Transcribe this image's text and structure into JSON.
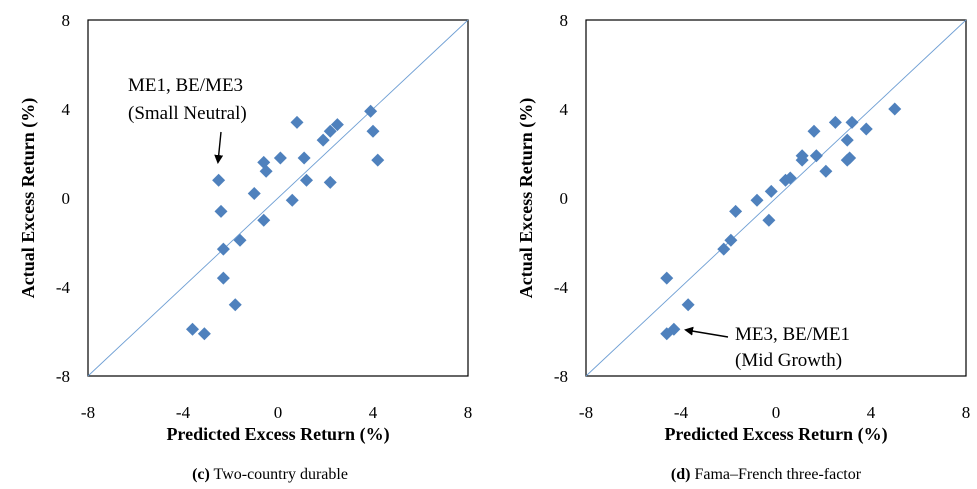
{
  "chart_data": [
    {
      "type": "scatter",
      "xlabel": "Predicted Excess Return (%)",
      "ylabel": "Actual Excess Return (%)",
      "xlim": [
        -8,
        8
      ],
      "ylim": [
        -8,
        8
      ],
      "xticks": [
        "-8",
        "-4",
        "0",
        "4",
        "8"
      ],
      "xtick_values": [
        -8,
        -4,
        0,
        4,
        8
      ],
      "yticks": [
        "8",
        "4",
        "0",
        "-4",
        "-8"
      ],
      "ytick_values": [
        8,
        4,
        0,
        -4,
        -8
      ],
      "grid": false,
      "reference_line": "y = x",
      "marker": "diamond",
      "marker_color": "#4f81bd",
      "line_color": "#6f9fd4",
      "points": [
        {
          "x": -2.5,
          "y": 0.8
        },
        {
          "x": -2.4,
          "y": -0.6
        },
        {
          "x": -2.3,
          "y": -2.3
        },
        {
          "x": -2.3,
          "y": -3.6
        },
        {
          "x": -1.8,
          "y": -4.8
        },
        {
          "x": -3.6,
          "y": -5.9
        },
        {
          "x": -3.1,
          "y": -6.1
        },
        {
          "x": -1.6,
          "y": -1.9
        },
        {
          "x": -1.0,
          "y": 0.2
        },
        {
          "x": -0.6,
          "y": -1.0
        },
        {
          "x": -0.6,
          "y": 1.6
        },
        {
          "x": -0.5,
          "y": 1.2
        },
        {
          "x": 0.1,
          "y": 1.8
        },
        {
          "x": 0.6,
          "y": -0.1
        },
        {
          "x": 0.8,
          "y": 3.4
        },
        {
          "x": 1.1,
          "y": 1.8
        },
        {
          "x": 1.2,
          "y": 0.8
        },
        {
          "x": 1.9,
          "y": 2.6
        },
        {
          "x": 2.2,
          "y": 3.0
        },
        {
          "x": 2.2,
          "y": 0.7
        },
        {
          "x": 2.5,
          "y": 3.3
        },
        {
          "x": 3.9,
          "y": 3.9
        },
        {
          "x": 4.0,
          "y": 3.0
        },
        {
          "x": 4.2,
          "y": 1.7
        }
      ],
      "annotation": {
        "lines": [
          "ME1, BE/ME3",
          "(Small Neutral)"
        ],
        "target": {
          "x": -2.5,
          "y": 0.8
        }
      },
      "caption": {
        "letter": "(c)",
        "text": " Two-country durable"
      }
    },
    {
      "type": "scatter",
      "xlabel": "Predicted Excess Return (%)",
      "ylabel": "Actual Excess Return (%)",
      "xlim": [
        -8,
        8
      ],
      "ylim": [
        -8,
        8
      ],
      "xticks": [
        "-8",
        "-4",
        "0",
        "4",
        "8"
      ],
      "xtick_values": [
        -8,
        -4,
        0,
        4,
        8
      ],
      "yticks": [
        "8",
        "4",
        "0",
        "-4",
        "-8"
      ],
      "ytick_values": [
        8,
        4,
        0,
        -4,
        -8
      ],
      "grid": false,
      "reference_line": "y = x",
      "marker": "diamond",
      "marker_color": "#4f81bd",
      "line_color": "#6f9fd4",
      "points": [
        {
          "x": -4.6,
          "y": -3.6
        },
        {
          "x": -4.6,
          "y": -6.1
        },
        {
          "x": -4.3,
          "y": -5.9
        },
        {
          "x": -3.7,
          "y": -4.8
        },
        {
          "x": -2.2,
          "y": -2.3
        },
        {
          "x": -1.9,
          "y": -1.9
        },
        {
          "x": -1.7,
          "y": -0.6
        },
        {
          "x": -0.8,
          "y": -0.1
        },
        {
          "x": -0.3,
          "y": -1.0
        },
        {
          "x": -0.2,
          "y": 0.3
        },
        {
          "x": 0.4,
          "y": 0.8
        },
        {
          "x": 0.6,
          "y": 0.9
        },
        {
          "x": 1.1,
          "y": 1.7
        },
        {
          "x": 1.1,
          "y": 1.9
        },
        {
          "x": 1.6,
          "y": 3.0
        },
        {
          "x": 1.7,
          "y": 1.9
        },
        {
          "x": 2.1,
          "y": 1.2
        },
        {
          "x": 2.5,
          "y": 3.4
        },
        {
          "x": 3.0,
          "y": 2.6
        },
        {
          "x": 3.0,
          "y": 1.7
        },
        {
          "x": 3.1,
          "y": 1.8
        },
        {
          "x": 3.2,
          "y": 3.4
        },
        {
          "x": 3.8,
          "y": 3.1
        },
        {
          "x": 5.0,
          "y": 4.0
        }
      ],
      "annotation": {
        "lines": [
          "ME3, BE/ME1",
          "(Mid Growth)"
        ],
        "target": {
          "x": -4.3,
          "y": -5.9
        }
      },
      "caption": {
        "letter": "(d)",
        "text": " Fama–French three-factor"
      }
    }
  ]
}
